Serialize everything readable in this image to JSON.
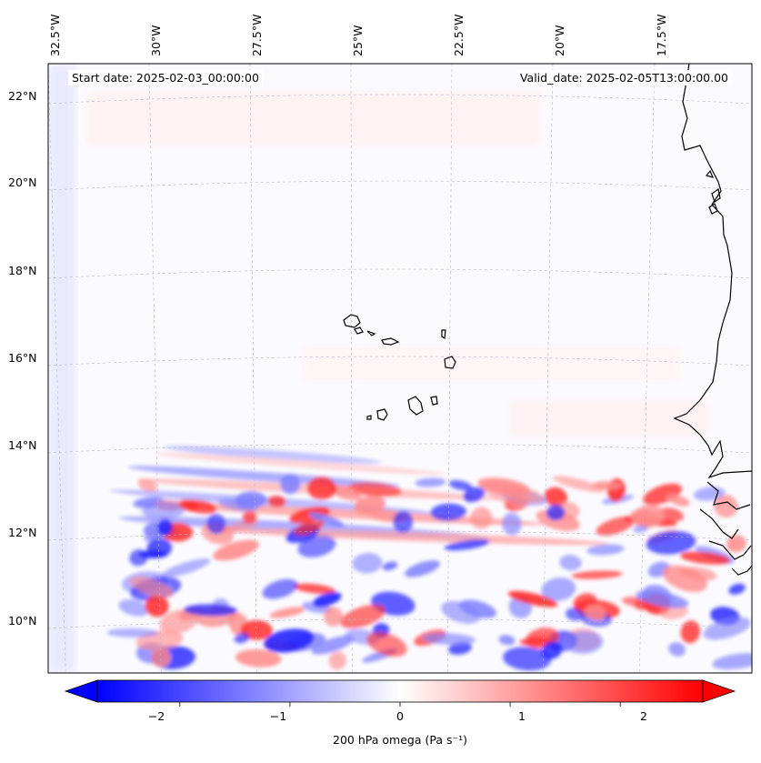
{
  "header": {
    "start_date": "Start date: 2025-02-03_00:00:00",
    "valid_date": "Valid_date: 2025-02-05T13:00:00.00"
  },
  "map": {
    "lon_labels": [
      "32.5°W",
      "30°W",
      "27.5°W",
      "25°W",
      "22.5°W",
      "20°W",
      "17.5°W"
    ],
    "lat_labels": [
      "22°N",
      "20°N",
      "18°N",
      "16°N",
      "14°N",
      "12°N",
      "10°N"
    ],
    "field": "200 hPa vertical velocity (omega)",
    "region": "Cabo Verde Islands and West African coast"
  },
  "colorbar": {
    "ticks": [
      "−2",
      "−1",
      "0",
      "1",
      "2"
    ],
    "tick_values": [
      -2,
      -1,
      0,
      1,
      2
    ],
    "range": [
      -2.75,
      2.75
    ],
    "title": "200 hPa omega (Pa s⁻¹)",
    "colormap": "bwr",
    "extend": "both"
  },
  "colors": {
    "negative": "#0000ff",
    "zero": "#ffffff",
    "positive": "#ff0000",
    "coast": "#000000"
  }
}
